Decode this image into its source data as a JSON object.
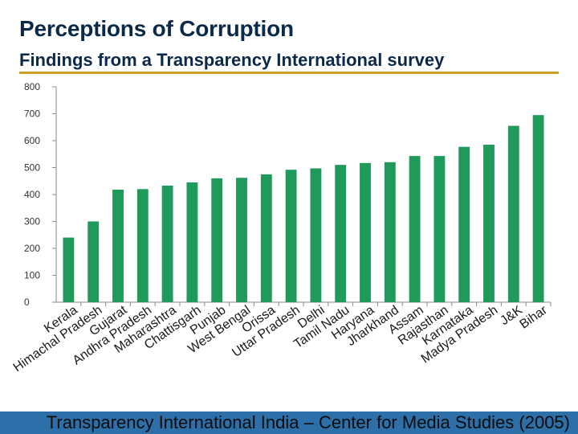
{
  "slide": {
    "title": "Perceptions of Corruption",
    "subtitle": "Findings from a Transparency International survey",
    "footer": "Transparency International India – Center for Media Studies (2005)"
  },
  "colors": {
    "bar": "#1f9a5b",
    "title": "#0b2a4a",
    "accent_rule": "#c9a227",
    "footer_band": "#2d6fa8"
  },
  "chart_data": {
    "type": "bar",
    "title": "",
    "xlabel": "",
    "ylabel": "",
    "ylim": [
      0,
      800
    ],
    "yticks": [
      0,
      100,
      200,
      300,
      400,
      500,
      600,
      700,
      800
    ],
    "grid": false,
    "legend": "none",
    "categories": [
      "Kerala",
      "Himachal Pradesh",
      "Gujarat",
      "Andhra Pradesh",
      "Maharashtra",
      "Chattisgarh",
      "Punjab",
      "West Bengal",
      "Orissa",
      "Uttar Pradesh",
      "Delhi",
      "Tamil Nadu",
      "Haryana",
      "Jharkhand",
      "Assam",
      "Rajasthan",
      "Karnataka",
      "Madya Pradesh",
      "J&K",
      "Bihar"
    ],
    "values": [
      240,
      300,
      418,
      420,
      433,
      445,
      460,
      462,
      475,
      492,
      497,
      510,
      517,
      520,
      543,
      543,
      577,
      585,
      655,
      695
    ]
  }
}
